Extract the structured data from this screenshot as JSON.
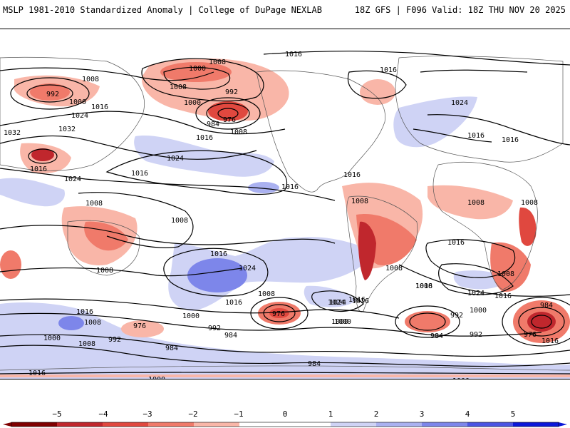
{
  "header": {
    "left": "MSLP 1981-2010 Standardized Anomaly | College of DuPage NEXLAB",
    "right": "18Z GFS | F096 Valid: 18Z THU NOV 20 2025"
  },
  "map": {
    "isobar_labels": [
      "1016",
      "1008",
      "1000",
      "992",
      "1008",
      "1016",
      "1008",
      "1000",
      "992",
      "984",
      "976",
      "1008",
      "1000",
      "1024",
      "1032",
      "1032",
      "1016",
      "1024",
      "1016",
      "1016",
      "1024",
      "1008",
      "1016",
      "1008",
      "1008",
      "1016",
      "1024",
      "1016",
      "1016",
      "1016",
      "1008",
      "1008",
      "1008",
      "1008",
      "1016",
      "1008",
      "1016",
      "1016",
      "1024",
      "1016",
      "1016",
      "1024",
      "1024",
      "1016",
      "1016",
      "1008",
      "1000",
      "976",
      "1000",
      "1008",
      "1008",
      "992",
      "984",
      "976",
      "984",
      "1000",
      "1008",
      "992",
      "976",
      "984",
      "992",
      "1000",
      "992",
      "984",
      "1016",
      "984",
      "1016",
      "1000",
      "1000",
      "1024",
      "1016",
      "1000"
    ]
  },
  "legend": {
    "ticks": [
      "−5",
      "−4",
      "−3",
      "−2",
      "−1",
      "0",
      "1",
      "2",
      "3",
      "4",
      "5"
    ],
    "colors": {
      "neg5": "#7f0000",
      "neg4": "#c0272d",
      "neg3": "#e0483f",
      "neg2": "#f07a6a",
      "neg1": "#f9b6a8",
      "zero": "#ffffff",
      "pos1": "#cfd3f5",
      "pos2": "#aab1f0",
      "pos3": "#7d86ea",
      "pos4": "#4b55e3",
      "pos5": "#0b18d8"
    }
  }
}
